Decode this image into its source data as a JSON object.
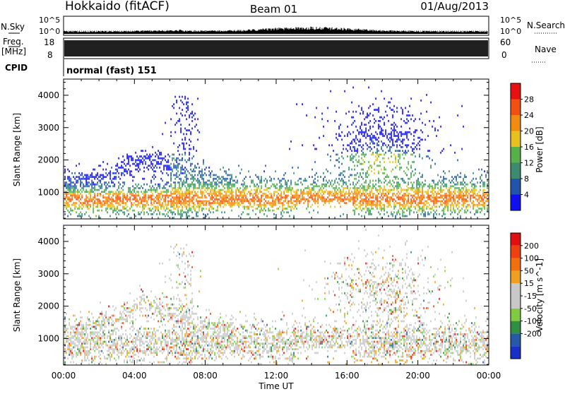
{
  "header": {
    "station": "Hokkaido (fitACF)",
    "beam": "Beam 01",
    "date": "01/Aug/2013"
  },
  "top_panels": {
    "nsky_label": "N.Sky",
    "nsky_scale_top": "10^5",
    "nsky_scale_bottom": "10^0",
    "nsearch_label": "N.Search",
    "freq_label_line1": "Freq.",
    "freq_label_line2": "[MHz]",
    "freq_ticks": [
      "18",
      "8"
    ],
    "nave_ticks": [
      "60",
      "0"
    ],
    "nave_label": "Nave",
    "cpid_label": "CPID",
    "cpid_text": "normal (fast) 151"
  },
  "colors": {
    "power": [
      "#1010ee",
      "#2255aa",
      "#3c8a70",
      "#58b04a",
      "#e8c020",
      "#f08c10",
      "#f05010",
      "#e81010"
    ],
    "velocity": [
      "#1830c8",
      "#2858a8",
      "#2e9040",
      "#80cc40",
      "#c8c8c8",
      "#c8c8c8",
      "#f0a020",
      "#f07010",
      "#ee4010",
      "#e01010"
    ]
  },
  "chart_data": [
    {
      "type": "heatmap",
      "title": "",
      "xlabel": "",
      "ylabel": "Slant Range [km]",
      "x_tick_labels": [
        "00:00",
        "04:00",
        "08:00",
        "12:00",
        "16:00",
        "20:00",
        "00:00"
      ],
      "y_tick_labels": [
        "1000",
        "2000",
        "3000",
        "4000"
      ],
      "ylim": [
        180,
        4500
      ],
      "colorbar": {
        "label": "Power [dB]",
        "ticks": [
          "4",
          "8",
          "12",
          "16",
          "20",
          "24",
          "28"
        ]
      }
    },
    {
      "type": "heatmap",
      "title": "",
      "xlabel": "Time UT",
      "ylabel": "Slant Range [km]",
      "x_tick_labels": [
        "00:00",
        "04:00",
        "08:00",
        "12:00",
        "16:00",
        "20:00",
        "00:00"
      ],
      "y_tick_labels": [
        "1000",
        "2000",
        "3000",
        "4000"
      ],
      "ylim": [
        180,
        4500
      ],
      "colorbar": {
        "label": "Velocity [m s^-1]",
        "ticks": [
          "200",
          "100",
          "50",
          "15",
          "-15",
          "-50",
          "-100",
          "-200"
        ]
      }
    }
  ]
}
